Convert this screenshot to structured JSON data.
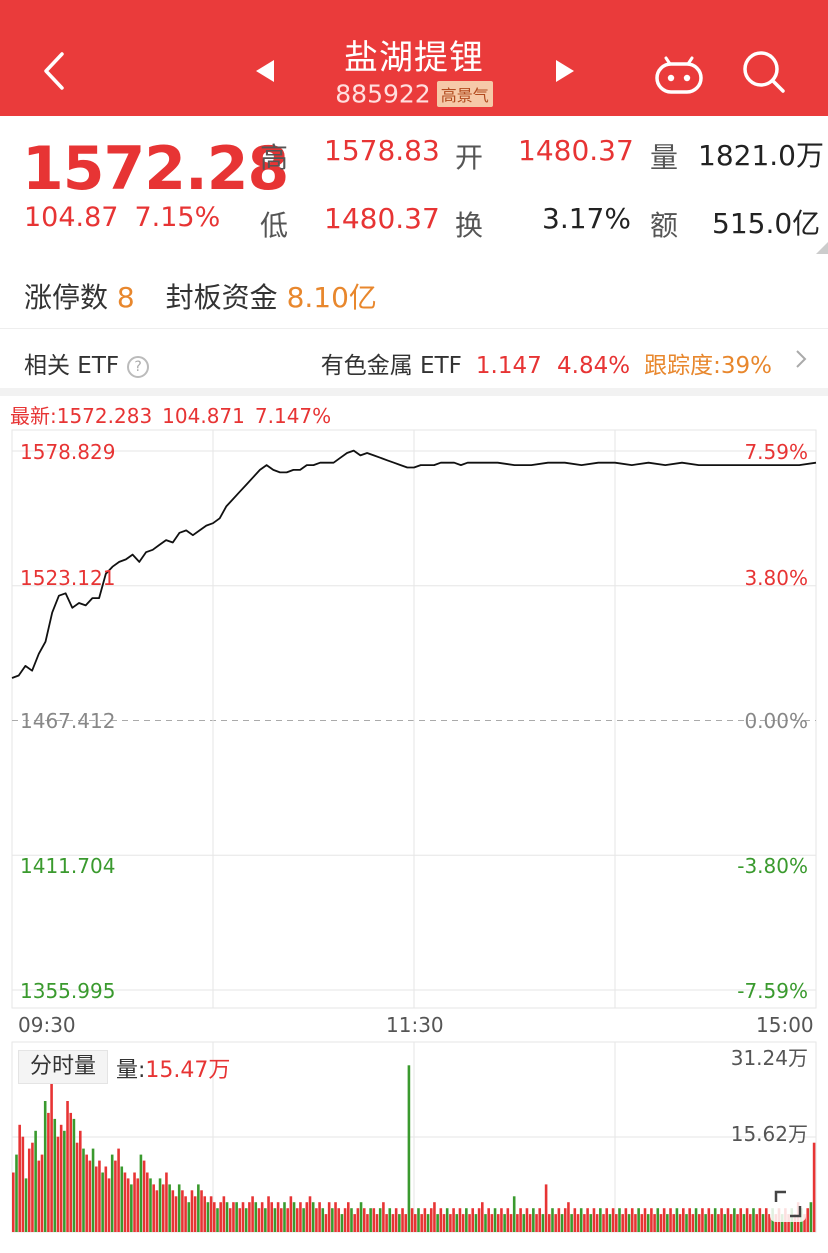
{
  "header": {
    "title": "盐湖提锂",
    "code": "885922",
    "tag": "高景气"
  },
  "quote": {
    "price": "1572.28",
    "change": "104.87",
    "change_pct": "7.15%",
    "high_label": "高",
    "high": "1578.83",
    "open_label": "开",
    "open": "1480.37",
    "volume_label": "量",
    "volume": "1821.0万",
    "low_label": "低",
    "low": "1480.37",
    "turnover_label": "换",
    "turnover": "3.17%",
    "amount_label": "额",
    "amount": "515.0亿",
    "limit_up_label": "涨停数",
    "limit_up": "8",
    "seal_fund_label": "封板资金",
    "seal_fund": "8.10亿"
  },
  "etf": {
    "label": "相关 ETF",
    "help": "?",
    "name": "有色金属 ETF",
    "price": "1.147",
    "pct": "4.84%",
    "tracking": "跟踪度:39%"
  },
  "chart_info": {
    "latest": "最新:1572.283",
    "change": "104.871",
    "pct": "7.147%"
  },
  "chart_data": {
    "type": "line",
    "title": "",
    "prev_close": 1467.412,
    "ylim": [
      1355.995,
      1578.829
    ],
    "y_ticks": [
      "1578.829",
      "1523.121",
      "1467.412",
      "1411.704",
      "1355.995"
    ],
    "pct_ticks": [
      "7.59%",
      "3.80%",
      "0.00%",
      "-3.80%",
      "-7.59%"
    ],
    "x_ticks": [
      "09:30",
      "11:30",
      "15:00"
    ],
    "x_range": [
      0,
      240
    ],
    "series": [
      {
        "x": [
          0,
          2,
          4,
          6,
          8,
          10,
          12,
          14,
          16,
          18,
          20,
          22,
          24,
          26,
          28,
          30,
          32,
          34,
          36,
          38,
          40,
          42,
          44,
          46,
          48,
          50,
          52,
          54,
          56,
          58,
          60,
          62,
          64,
          66,
          68,
          70,
          72,
          74,
          76,
          78,
          80,
          82,
          84,
          86,
          88,
          90,
          92,
          94,
          96,
          98,
          100,
          102,
          104,
          106,
          108,
          110,
          112,
          114,
          116,
          118,
          120,
          122,
          124,
          126,
          128,
          130,
          132,
          134,
          136,
          138,
          140,
          145,
          150,
          155,
          160,
          165,
          170,
          175,
          180,
          185,
          190,
          195,
          200,
          205,
          210,
          215,
          220,
          225,
          230,
          235,
          240
        ],
        "values": [
          1485,
          1486,
          1490,
          1488,
          1495,
          1500,
          1512,
          1519,
          1520,
          1514,
          1516,
          1515,
          1518,
          1518,
          1528,
          1531,
          1533,
          1534,
          1536,
          1533,
          1537,
          1538,
          1540,
          1542,
          1541,
          1545,
          1546,
          1544,
          1546,
          1548,
          1549,
          1551,
          1556,
          1559,
          1562,
          1565,
          1568,
          1571,
          1573,
          1571,
          1570,
          1570,
          1571,
          1571,
          1573,
          1573,
          1574,
          1574,
          1574,
          1576,
          1578,
          1579,
          1577,
          1578,
          1577,
          1576,
          1575,
          1574,
          1573,
          1572,
          1572,
          1573,
          1573,
          1573,
          1574,
          1574,
          1574,
          1573,
          1574,
          1574,
          1574,
          1574,
          1573,
          1573,
          1574,
          1574,
          1573,
          1574,
          1574,
          1573,
          1574,
          1573,
          1574,
          1573,
          1573,
          1573,
          1573,
          1573,
          1573,
          1573,
          1574
        ]
      }
    ],
    "volume": {
      "unit": "万",
      "max": 31.24,
      "ticks": [
        "31.24万",
        "15.62万"
      ],
      "current": "15.47万",
      "values": [
        10,
        13,
        18,
        16,
        9,
        14,
        15,
        17,
        12,
        13,
        22,
        20,
        25,
        19,
        16,
        18,
        17,
        22,
        20,
        19,
        15,
        17,
        14,
        13,
        12,
        14,
        11,
        12,
        10,
        11,
        9,
        13,
        12,
        14,
        11,
        10,
        9,
        8,
        10,
        9,
        13,
        12,
        10,
        9,
        8,
        7,
        9,
        8,
        10,
        8,
        7,
        6,
        8,
        7,
        6,
        5,
        7,
        6,
        8,
        7,
        6,
        5,
        6,
        5,
        4,
        5,
        6,
        5,
        4,
        5,
        5,
        4,
        5,
        4,
        5,
        6,
        5,
        4,
        5,
        4,
        6,
        5,
        4,
        5,
        4,
        5,
        4,
        6,
        5,
        4,
        5,
        4,
        5,
        6,
        5,
        4,
        5,
        4,
        3,
        5,
        4,
        5,
        4,
        3,
        4,
        5,
        4,
        3,
        4,
        5,
        4,
        3,
        4,
        4,
        3,
        4,
        5,
        3,
        4,
        3,
        4,
        3,
        4,
        3,
        28,
        4,
        3,
        4,
        3,
        4,
        3,
        4,
        5,
        3,
        4,
        3,
        4,
        3,
        4,
        3,
        4,
        3,
        4,
        3,
        4,
        3,
        4,
        5,
        3,
        4,
        3,
        4,
        3,
        4,
        3,
        4,
        3,
        6,
        3,
        4,
        3,
        4,
        3,
        4,
        3,
        4,
        3,
        8,
        3,
        4,
        3,
        4,
        3,
        4,
        5,
        3,
        4,
        3,
        4,
        3,
        4,
        3,
        4,
        3,
        4,
        3,
        4,
        3,
        4,
        3,
        4,
        3,
        4,
        3,
        4,
        3,
        4,
        3,
        4,
        3,
        4,
        3,
        4,
        3,
        4,
        3,
        4,
        3,
        4,
        3,
        4,
        3,
        4,
        3,
        4,
        3,
        4,
        3,
        4,
        3,
        4,
        3,
        4,
        3,
        4,
        3,
        4,
        3,
        4,
        3,
        4,
        3,
        4,
        3,
        4,
        3,
        4,
        3,
        4,
        3,
        4,
        3,
        4,
        3,
        4,
        3,
        5,
        4,
        3,
        4,
        5,
        15
      ]
    }
  }
}
